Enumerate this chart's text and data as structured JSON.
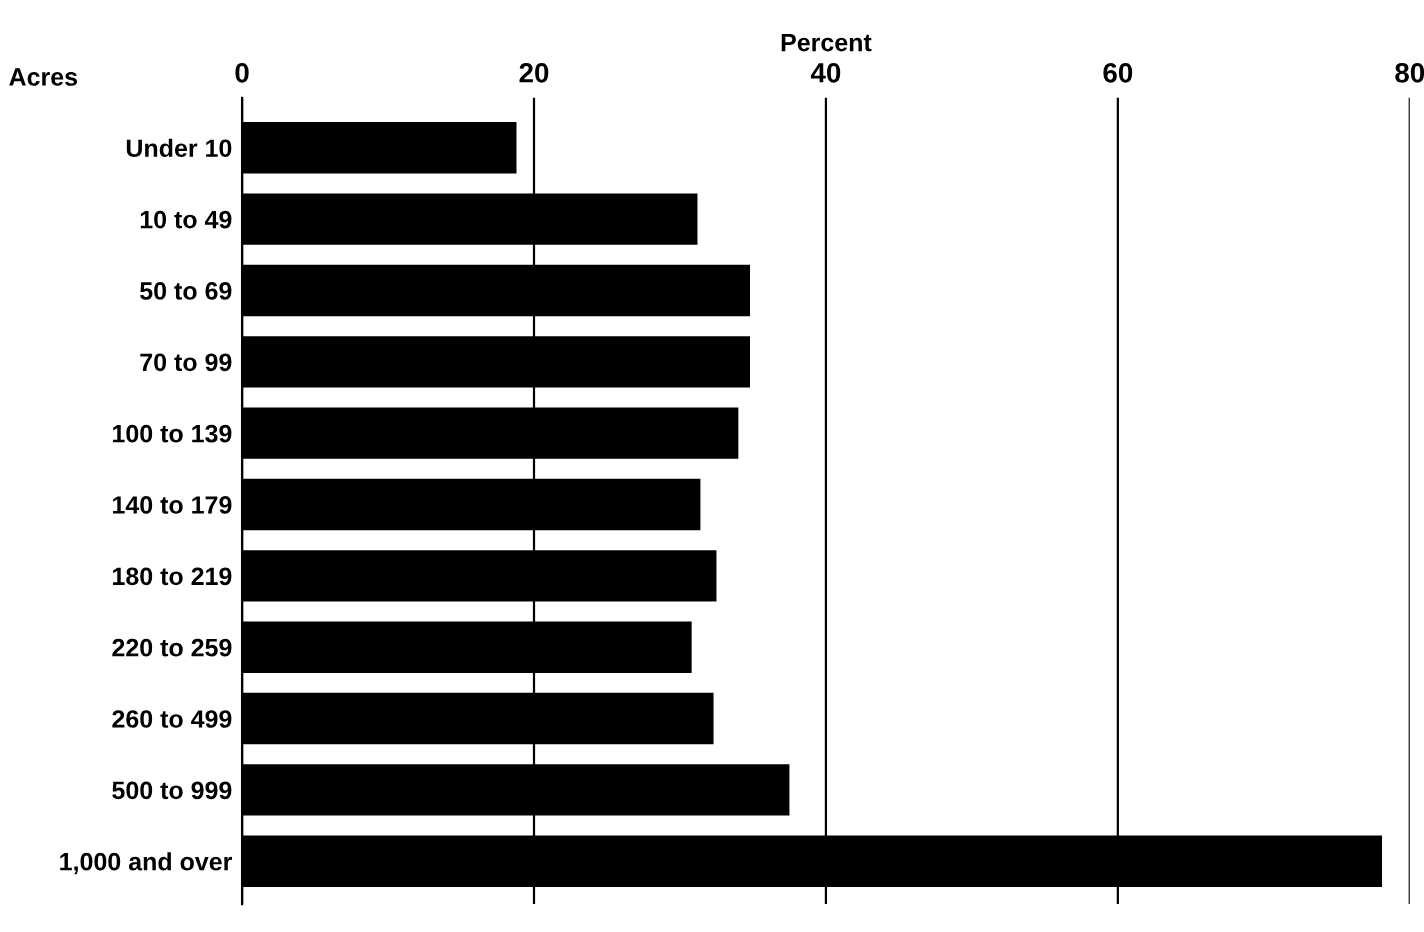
{
  "chart_data": {
    "type": "bar",
    "orientation": "horizontal",
    "xlabel": "Percent",
    "ylabel": "Acres",
    "categories": [
      "Under 10",
      "10 to 49",
      "50 to 69",
      "70 to 99",
      "100 to 139",
      "140 to 179",
      "180 to 219",
      "220 to 259",
      "260 to 499",
      "500 to 999",
      "1,000 and over"
    ],
    "values": [
      18.8,
      31.2,
      34.8,
      34.8,
      34.0,
      31.4,
      32.5,
      30.8,
      32.3,
      37.5,
      78.1
    ],
    "color": "#000000",
    "xlim": [
      0,
      80
    ],
    "xticks": [
      0,
      20,
      40,
      60,
      80
    ],
    "grid": "x"
  }
}
